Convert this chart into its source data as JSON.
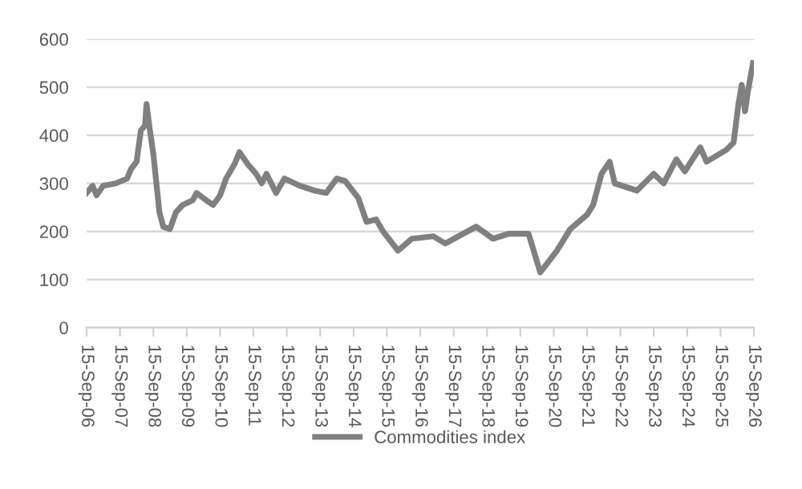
{
  "chart_data": {
    "type": "line",
    "x": [
      "2006-09-15",
      "2006-11-20",
      "2007-01-01",
      "2007-03-15",
      "2007-08-01",
      "2007-12-01",
      "2008-01-15",
      "2008-03-15",
      "2008-05-01",
      "2008-06-15",
      "2008-07-02",
      "2008-08-01",
      "2008-09-15",
      "2008-11-20",
      "2009-01-01",
      "2009-03-15",
      "2009-05-20",
      "2009-08-01",
      "2009-11-20",
      "2010-01-01",
      "2010-04-15",
      "2010-07-01",
      "2010-09-15",
      "2010-11-20",
      "2011-02-20",
      "2011-04-15",
      "2011-07-15",
      "2011-10-15",
      "2011-12-15",
      "2012-02-05",
      "2012-05-20",
      "2012-08-20",
      "2013-02-05",
      "2013-07-15",
      "2013-11-20",
      "2014-03-15",
      "2014-06-15",
      "2014-11-05",
      "2015-02-05",
      "2015-05-20",
      "2015-08-05",
      "2016-01-15",
      "2016-06-15",
      "2017-02-05",
      "2017-06-15",
      "2018-05-20",
      "2018-11-20",
      "2019-05-05",
      "2019-12-15",
      "2020-04-20",
      "2020-10-20",
      "2021-03-15",
      "2021-09-15",
      "2021-11-20",
      "2022-02-20",
      "2022-05-20",
      "2022-07-15",
      "2023-03-15",
      "2023-09-15",
      "2024-01-01",
      "2024-05-20",
      "2024-08-20",
      "2025-02-05",
      "2025-04-15",
      "2025-11-20",
      "2026-02-05",
      "2026-03-30",
      "2026-05-05",
      "2026-06-10",
      "2026-07-15",
      "2026-09-05"
    ],
    "series": [
      {
        "name": "Commodities index",
        "color": "#808080",
        "values": [
          280,
          295,
          275,
          295,
          300,
          310,
          330,
          345,
          410,
          420,
          465,
          420,
          360,
          240,
          210,
          205,
          240,
          255,
          265,
          280,
          265,
          255,
          275,
          310,
          340,
          365,
          340,
          320,
          300,
          320,
          280,
          310,
          295,
          285,
          280,
          310,
          305,
          270,
          220,
          225,
          200,
          160,
          185,
          190,
          175,
          210,
          185,
          195,
          195,
          115,
          160,
          205,
          235,
          255,
          320,
          345,
          300,
          285,
          320,
          300,
          350,
          325,
          375,
          345,
          370,
          385,
          465,
          505,
          450,
          495,
          550
        ]
      }
    ],
    "xlim": [
      "2006-09-15",
      "2026-09-15"
    ],
    "xticks": [
      {
        "value": "2006-09-15",
        "label": "15-Sep-06"
      },
      {
        "value": "2007-09-15",
        "label": "15-Sep-07"
      },
      {
        "value": "2008-09-15",
        "label": "15-Sep-08"
      },
      {
        "value": "2009-09-15",
        "label": "15-Sep-09"
      },
      {
        "value": "2010-09-15",
        "label": "15-Sep-10"
      },
      {
        "value": "2011-09-15",
        "label": "15-Sep-11"
      },
      {
        "value": "2012-09-15",
        "label": "15-Sep-12"
      },
      {
        "value": "2013-09-15",
        "label": "15-Sep-13"
      },
      {
        "value": "2014-09-15",
        "label": "15-Sep-14"
      },
      {
        "value": "2015-09-15",
        "label": "15-Sep-15"
      },
      {
        "value": "2016-09-15",
        "label": "15-Sep-16"
      },
      {
        "value": "2017-09-15",
        "label": "15-Sep-17"
      },
      {
        "value": "2018-09-15",
        "label": "15-Sep-18"
      },
      {
        "value": "2019-09-15",
        "label": "15-Sep-19"
      },
      {
        "value": "2020-09-15",
        "label": "15-Sep-20"
      },
      {
        "value": "2021-09-15",
        "label": "15-Sep-21"
      },
      {
        "value": "2022-09-15",
        "label": "15-Sep-22"
      },
      {
        "value": "2023-09-15",
        "label": "15-Sep-23"
      },
      {
        "value": "2024-09-15",
        "label": "15-Sep-24"
      },
      {
        "value": "2025-09-15",
        "label": "15-Sep-25"
      },
      {
        "value": "2026-09-15",
        "label": "15-Sep-26"
      }
    ],
    "ylim": [
      0,
      600
    ],
    "yticks": [
      0,
      100,
      200,
      300,
      400,
      500,
      600
    ],
    "grid": "y",
    "legend": "bottom",
    "marker": "none",
    "line_style": "solid"
  }
}
